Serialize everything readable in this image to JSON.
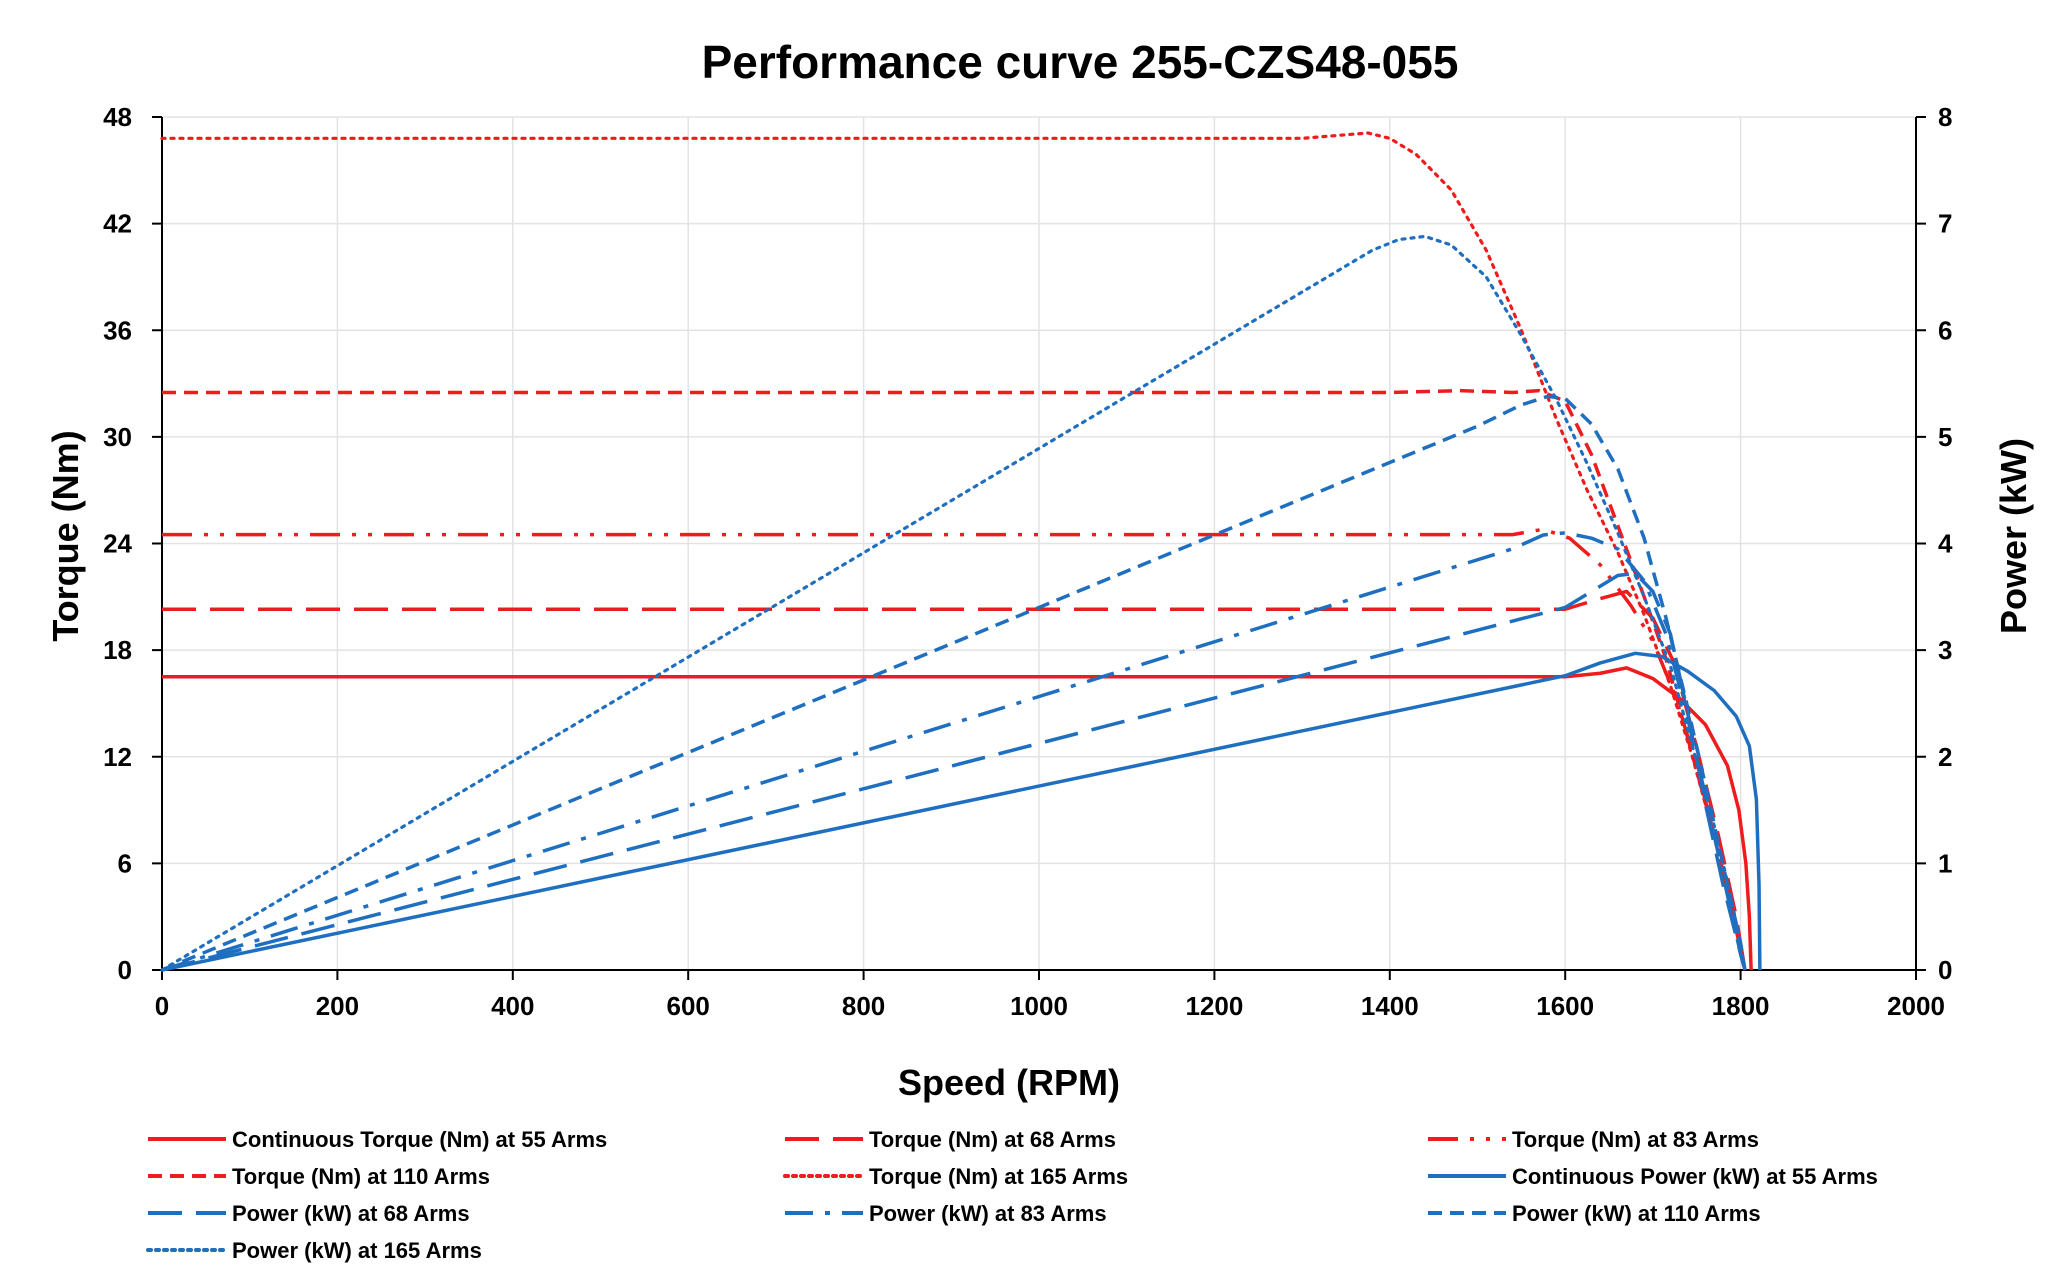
{
  "colors": {
    "red": "#ee1c1c",
    "blue": "#1f6fc1",
    "grid": "#e3e3e3"
  },
  "chart_data": {
    "type": "line",
    "title": "Performance curve 255-CZS48-055",
    "xlabel": "Speed (RPM)",
    "ylabel": "Torque (Nm)",
    "y2label": "Power (kW)",
    "xlim": [
      0,
      2000
    ],
    "ylim": [
      0,
      48
    ],
    "y2lim": [
      0,
      8
    ],
    "x_ticks": [
      0,
      200,
      400,
      600,
      800,
      1000,
      1200,
      1400,
      1600,
      1800,
      2000
    ],
    "y_ticks": [
      0,
      6,
      12,
      18,
      24,
      30,
      36,
      42,
      48
    ],
    "y2_ticks": [
      0,
      1,
      2,
      3,
      4,
      5,
      6,
      7,
      8
    ],
    "grid": true,
    "legend_position": "bottom",
    "series": [
      {
        "name": "Continuous Torque (Nm) at 55 Arms",
        "axis": "left",
        "color": "red",
        "dash": "solid",
        "points": [
          [
            0,
            16.5
          ],
          [
            1600,
            16.5
          ],
          [
            1640,
            16.7
          ],
          [
            1670,
            17.0
          ],
          [
            1700,
            16.4
          ],
          [
            1730,
            15.3
          ],
          [
            1760,
            13.8
          ],
          [
            1785,
            11.5
          ],
          [
            1798,
            9.0
          ],
          [
            1806,
            6.0
          ],
          [
            1810,
            3.0
          ],
          [
            1812,
            0.0
          ]
        ]
      },
      {
        "name": "Torque (Nm) at 68 Arms",
        "axis": "left",
        "color": "red",
        "dash": "longdash",
        "points": [
          [
            0,
            20.3
          ],
          [
            1600,
            20.3
          ],
          [
            1640,
            20.9
          ],
          [
            1670,
            21.3
          ],
          [
            1700,
            19.8
          ],
          [
            1725,
            17.2
          ],
          [
            1750,
            12.5
          ],
          [
            1775,
            7.5
          ],
          [
            1795,
            3.0
          ],
          [
            1805,
            0.0
          ]
        ]
      },
      {
        "name": "Torque (Nm) at 83 Arms",
        "axis": "left",
        "color": "red",
        "dash": "dashdotdot",
        "points": [
          [
            0,
            24.5
          ],
          [
            1540,
            24.5
          ],
          [
            1575,
            24.8
          ],
          [
            1605,
            24.3
          ],
          [
            1640,
            22.8
          ],
          [
            1675,
            20.5
          ],
          [
            1700,
            18.5
          ],
          [
            1725,
            15.5
          ],
          [
            1750,
            11.5
          ],
          [
            1775,
            6.5
          ],
          [
            1795,
            2.5
          ],
          [
            1805,
            0.0
          ]
        ]
      },
      {
        "name": "Torque (Nm) at 110 Arms",
        "axis": "left",
        "color": "red",
        "dash": "shortdash",
        "points": [
          [
            0,
            32.5
          ],
          [
            1400,
            32.5
          ],
          [
            1480,
            32.6
          ],
          [
            1540,
            32.5
          ],
          [
            1570,
            32.6
          ],
          [
            1600,
            32.0
          ],
          [
            1630,
            29.0
          ],
          [
            1660,
            25.0
          ],
          [
            1690,
            21.0
          ],
          [
            1715,
            17.5
          ],
          [
            1740,
            13.0
          ],
          [
            1765,
            8.5
          ],
          [
            1785,
            4.5
          ],
          [
            1805,
            0.0
          ]
        ]
      },
      {
        "name": "Torque (Nm) at 165 Arms",
        "axis": "left",
        "color": "red",
        "dash": "dot",
        "points": [
          [
            0,
            46.8
          ],
          [
            1300,
            46.8
          ],
          [
            1350,
            47.0
          ],
          [
            1375,
            47.1
          ],
          [
            1400,
            46.8
          ],
          [
            1430,
            45.9
          ],
          [
            1470,
            43.9
          ],
          [
            1510,
            40.5
          ],
          [
            1550,
            36.0
          ],
          [
            1590,
            31.0
          ],
          [
            1625,
            27.0
          ],
          [
            1660,
            23.5
          ],
          [
            1690,
            20.0
          ],
          [
            1720,
            16.0
          ],
          [
            1745,
            12.0
          ],
          [
            1770,
            7.5
          ],
          [
            1790,
            3.5
          ],
          [
            1805,
            0.0
          ]
        ]
      },
      {
        "name": "Continuous Power (kW) at 55 Arms",
        "axis": "right",
        "color": "blue",
        "dash": "solid",
        "points": [
          [
            0,
            0
          ],
          [
            1600,
            2.76
          ],
          [
            1640,
            2.88
          ],
          [
            1680,
            2.97
          ],
          [
            1710,
            2.94
          ],
          [
            1740,
            2.8
          ],
          [
            1770,
            2.62
          ],
          [
            1795,
            2.38
          ],
          [
            1810,
            2.1
          ],
          [
            1818,
            1.6
          ],
          [
            1821,
            0.8
          ],
          [
            1822,
            0.0
          ]
        ]
      },
      {
        "name": "Power (kW) at 68 Arms",
        "axis": "right",
        "color": "blue",
        "dash": "longdash",
        "points": [
          [
            0,
            0
          ],
          [
            1600,
            3.4
          ],
          [
            1630,
            3.55
          ],
          [
            1660,
            3.7
          ],
          [
            1680,
            3.72
          ],
          [
            1700,
            3.55
          ],
          [
            1720,
            3.15
          ],
          [
            1740,
            2.4
          ],
          [
            1760,
            1.55
          ],
          [
            1780,
            0.8
          ],
          [
            1800,
            0.15
          ],
          [
            1805,
            0.0
          ]
        ]
      },
      {
        "name": "Power (kW) at 83 Arms",
        "axis": "right",
        "color": "blue",
        "dash": "dashdot",
        "points": [
          [
            0,
            0
          ],
          [
            1540,
            3.95
          ],
          [
            1575,
            4.08
          ],
          [
            1600,
            4.1
          ],
          [
            1630,
            4.05
          ],
          [
            1660,
            3.95
          ],
          [
            1690,
            3.65
          ],
          [
            1715,
            3.15
          ],
          [
            1740,
            2.35
          ],
          [
            1765,
            1.45
          ],
          [
            1785,
            0.7
          ],
          [
            1800,
            0.15
          ],
          [
            1805,
            0.0
          ]
        ]
      },
      {
        "name": "Power (kW) at 110 Arms",
        "axis": "right",
        "color": "blue",
        "dash": "shortdash",
        "points": [
          [
            0,
            0
          ],
          [
            1500,
            5.1
          ],
          [
            1550,
            5.3
          ],
          [
            1580,
            5.38
          ],
          [
            1600,
            5.36
          ],
          [
            1630,
            5.12
          ],
          [
            1660,
            4.7
          ],
          [
            1690,
            4.05
          ],
          [
            1715,
            3.3
          ],
          [
            1740,
            2.45
          ],
          [
            1765,
            1.55
          ],
          [
            1785,
            0.8
          ],
          [
            1800,
            0.25
          ],
          [
            1805,
            0.0
          ]
        ]
      },
      {
        "name": "Power (kW) at 165 Arms",
        "axis": "right",
        "color": "blue",
        "dash": "dot",
        "points": [
          [
            0,
            0
          ],
          [
            1380,
            6.75
          ],
          [
            1410,
            6.85
          ],
          [
            1440,
            6.88
          ],
          [
            1470,
            6.8
          ],
          [
            1510,
            6.5
          ],
          [
            1550,
            5.95
          ],
          [
            1590,
            5.35
          ],
          [
            1625,
            4.75
          ],
          [
            1660,
            4.1
          ],
          [
            1690,
            3.5
          ],
          [
            1720,
            2.85
          ],
          [
            1745,
            2.1
          ],
          [
            1770,
            1.35
          ],
          [
            1790,
            0.65
          ],
          [
            1805,
            0.0
          ]
        ]
      }
    ]
  }
}
